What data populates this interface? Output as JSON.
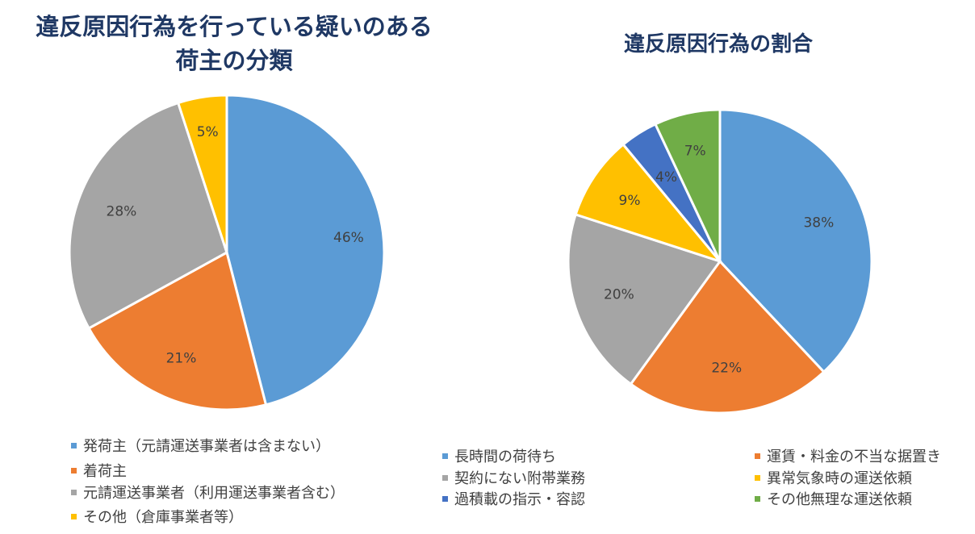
{
  "chart_data": [
    {
      "type": "pie",
      "title": [
        "違反原因行為を行っている疑いのある",
        "荷主の分類"
      ],
      "categories": [
        "発荷主（元請運送事業者は含まない）",
        "着荷主",
        "元請運送事業者（利用運送事業者含む）",
        "その他（倉庫事業者等）"
      ],
      "values": [
        46,
        21,
        28,
        5
      ],
      "data_labels": [
        "46%",
        "21%",
        "28%",
        "5%"
      ],
      "colors": [
        "#5B9BD5",
        "#ED7D31",
        "#A5A5A5",
        "#FFC000"
      ],
      "legend_position": "bottom"
    },
    {
      "type": "pie",
      "title": [
        "違反原因行為の割合"
      ],
      "categories": [
        "長時間の荷待ち",
        "運賃・料金の不当な据置き",
        "契約にない附帯業務",
        "異常気象時の運送依頼",
        "過積載の指示・容認",
        "その他無理な運送依頼"
      ],
      "values": [
        38,
        22,
        20,
        9,
        4,
        7
      ],
      "data_labels": [
        "38%",
        "22%",
        "20%",
        "9%",
        "4%",
        "7%"
      ],
      "colors": [
        "#5B9BD5",
        "#ED7D31",
        "#A5A5A5",
        "#FFC000",
        "#4472C4",
        "#70AD47"
      ],
      "legend_position": "bottom"
    }
  ]
}
